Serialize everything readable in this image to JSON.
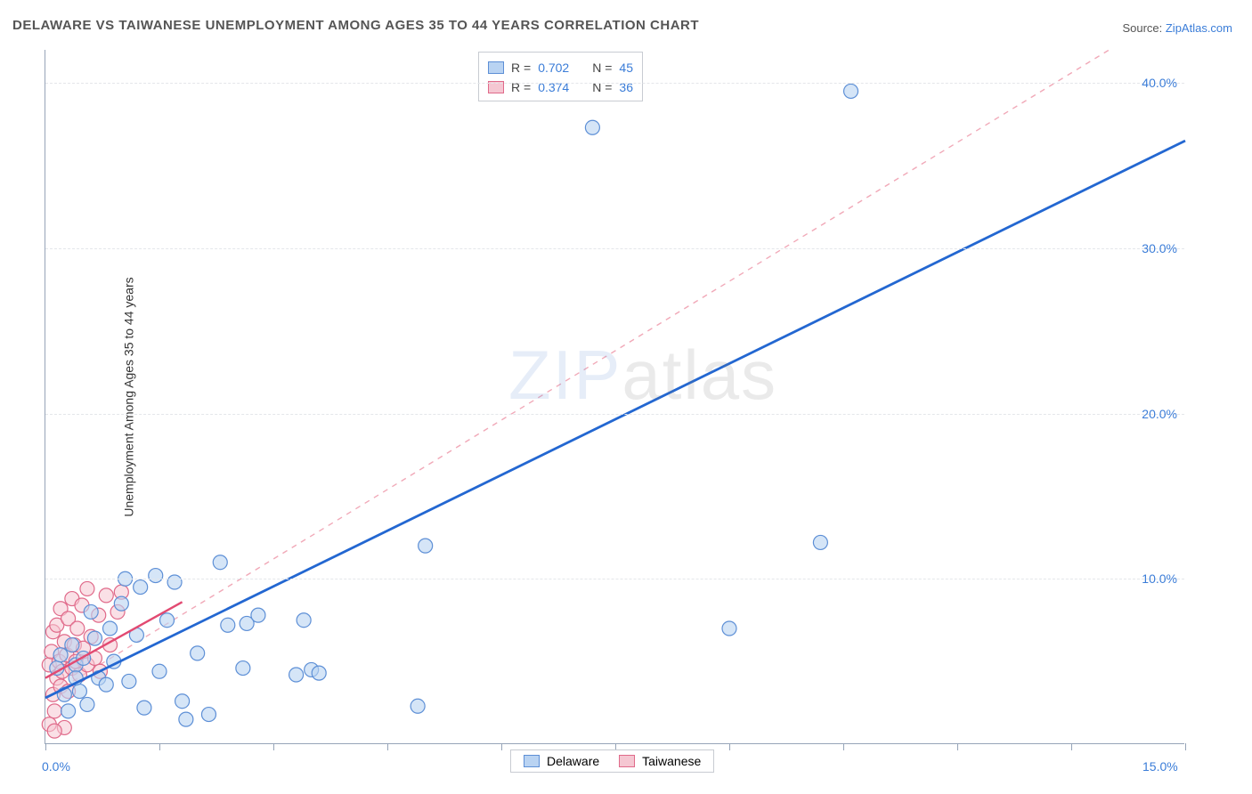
{
  "title": "DELAWARE VS TAIWANESE UNEMPLOYMENT AMONG AGES 35 TO 44 YEARS CORRELATION CHART",
  "source": {
    "label": "Source: ",
    "value": "ZipAtlas.com"
  },
  "y_axis_label": "Unemployment Among Ages 35 to 44 years",
  "watermark": {
    "part1": "ZIP",
    "part2": "atlas"
  },
  "chart": {
    "type": "scatter",
    "background_color": "#ffffff",
    "grid_color": "#e4e6ea",
    "axis_color": "#96a4b8",
    "label_color": "#3b7dd8",
    "xlim": [
      0,
      15
    ],
    "ylim": [
      0,
      42
    ],
    "x_ticks": [
      0,
      1.5,
      3.0,
      4.5,
      6.0,
      7.5,
      9.0,
      10.5,
      12.0,
      13.5,
      15.0
    ],
    "x_tick_labels": {
      "0": "0.0%",
      "15": "15.0%"
    },
    "y_grid": [
      10,
      20,
      30,
      40
    ],
    "y_tick_labels": {
      "10": "10.0%",
      "20": "20.0%",
      "30": "30.0%",
      "40": "40.0%"
    },
    "marker_radius": 8,
    "marker_stroke_width": 1.2,
    "series": [
      {
        "key": "delaware",
        "label": "Delaware",
        "R": "0.702",
        "N": "45",
        "fill": "#b9d3f2",
        "stroke": "#5d8fd6",
        "fill_opacity": 0.6,
        "points": [
          [
            0.15,
            4.6
          ],
          [
            0.2,
            5.4
          ],
          [
            0.25,
            3.0
          ],
          [
            0.3,
            2.0
          ],
          [
            0.35,
            6.0
          ],
          [
            0.4,
            4.8
          ],
          [
            0.45,
            3.2
          ],
          [
            0.5,
            5.2
          ],
          [
            0.55,
            2.4
          ],
          [
            0.6,
            8.0
          ],
          [
            0.65,
            6.4
          ],
          [
            0.7,
            4.0
          ],
          [
            0.8,
            3.6
          ],
          [
            0.85,
            7.0
          ],
          [
            0.9,
            5.0
          ],
          [
            1.0,
            8.5
          ],
          [
            1.05,
            10.0
          ],
          [
            1.1,
            3.8
          ],
          [
            1.2,
            6.6
          ],
          [
            1.25,
            9.5
          ],
          [
            1.3,
            2.2
          ],
          [
            1.45,
            10.2
          ],
          [
            1.5,
            4.4
          ],
          [
            1.6,
            7.5
          ],
          [
            1.7,
            9.8
          ],
          [
            1.8,
            2.6
          ],
          [
            1.85,
            1.5
          ],
          [
            2.0,
            5.5
          ],
          [
            2.15,
            1.8
          ],
          [
            2.3,
            11.0
          ],
          [
            2.4,
            7.2
          ],
          [
            2.6,
            4.6
          ],
          [
            2.65,
            7.3
          ],
          [
            2.8,
            7.8
          ],
          [
            3.3,
            4.2
          ],
          [
            3.5,
            4.5
          ],
          [
            3.4,
            7.5
          ],
          [
            3.6,
            4.3
          ],
          [
            4.9,
            2.3
          ],
          [
            5.0,
            12.0
          ],
          [
            7.2,
            37.3
          ],
          [
            9.0,
            7.0
          ],
          [
            10.6,
            39.5
          ],
          [
            10.2,
            12.2
          ],
          [
            0.4,
            4.0
          ]
        ],
        "trend": {
          "x1": 0,
          "y1": 2.8,
          "x2": 15,
          "y2": 36.5,
          "color": "#2367d1",
          "width": 2.8,
          "dash": "none"
        },
        "trend_dashed": {
          "x1": 0,
          "y1": 2.8,
          "x2": 14.0,
          "y2": 42.0,
          "color": "#f1a9b8",
          "width": 1.4,
          "dash": "6,6"
        }
      },
      {
        "key": "taiwanese",
        "label": "Taiwanese",
        "R": "0.374",
        "N": "36",
        "fill": "#f5c7d2",
        "stroke": "#e06a8a",
        "fill_opacity": 0.55,
        "points": [
          [
            0.05,
            1.2
          ],
          [
            0.05,
            4.8
          ],
          [
            0.08,
            5.6
          ],
          [
            0.1,
            3.0
          ],
          [
            0.1,
            6.8
          ],
          [
            0.12,
            2.0
          ],
          [
            0.15,
            4.0
          ],
          [
            0.15,
            7.2
          ],
          [
            0.18,
            5.0
          ],
          [
            0.2,
            3.5
          ],
          [
            0.2,
            8.2
          ],
          [
            0.22,
            4.4
          ],
          [
            0.25,
            6.2
          ],
          [
            0.28,
            5.4
          ],
          [
            0.3,
            7.6
          ],
          [
            0.3,
            3.2
          ],
          [
            0.35,
            4.6
          ],
          [
            0.35,
            8.8
          ],
          [
            0.38,
            6.0
          ],
          [
            0.4,
            5.0
          ],
          [
            0.42,
            7.0
          ],
          [
            0.45,
            4.2
          ],
          [
            0.48,
            8.4
          ],
          [
            0.5,
            5.8
          ],
          [
            0.55,
            4.8
          ],
          [
            0.55,
            9.4
          ],
          [
            0.6,
            6.5
          ],
          [
            0.65,
            5.2
          ],
          [
            0.7,
            7.8
          ],
          [
            0.72,
            4.4
          ],
          [
            0.8,
            9.0
          ],
          [
            0.85,
            6.0
          ],
          [
            0.95,
            8.0
          ],
          [
            1.0,
            9.2
          ],
          [
            0.25,
            1.0
          ],
          [
            0.12,
            0.8
          ]
        ],
        "trend": {
          "x1": 0,
          "y1": 4.0,
          "x2": 1.8,
          "y2": 8.6,
          "color": "#e24a72",
          "width": 2.4,
          "dash": "none"
        }
      }
    ]
  }
}
